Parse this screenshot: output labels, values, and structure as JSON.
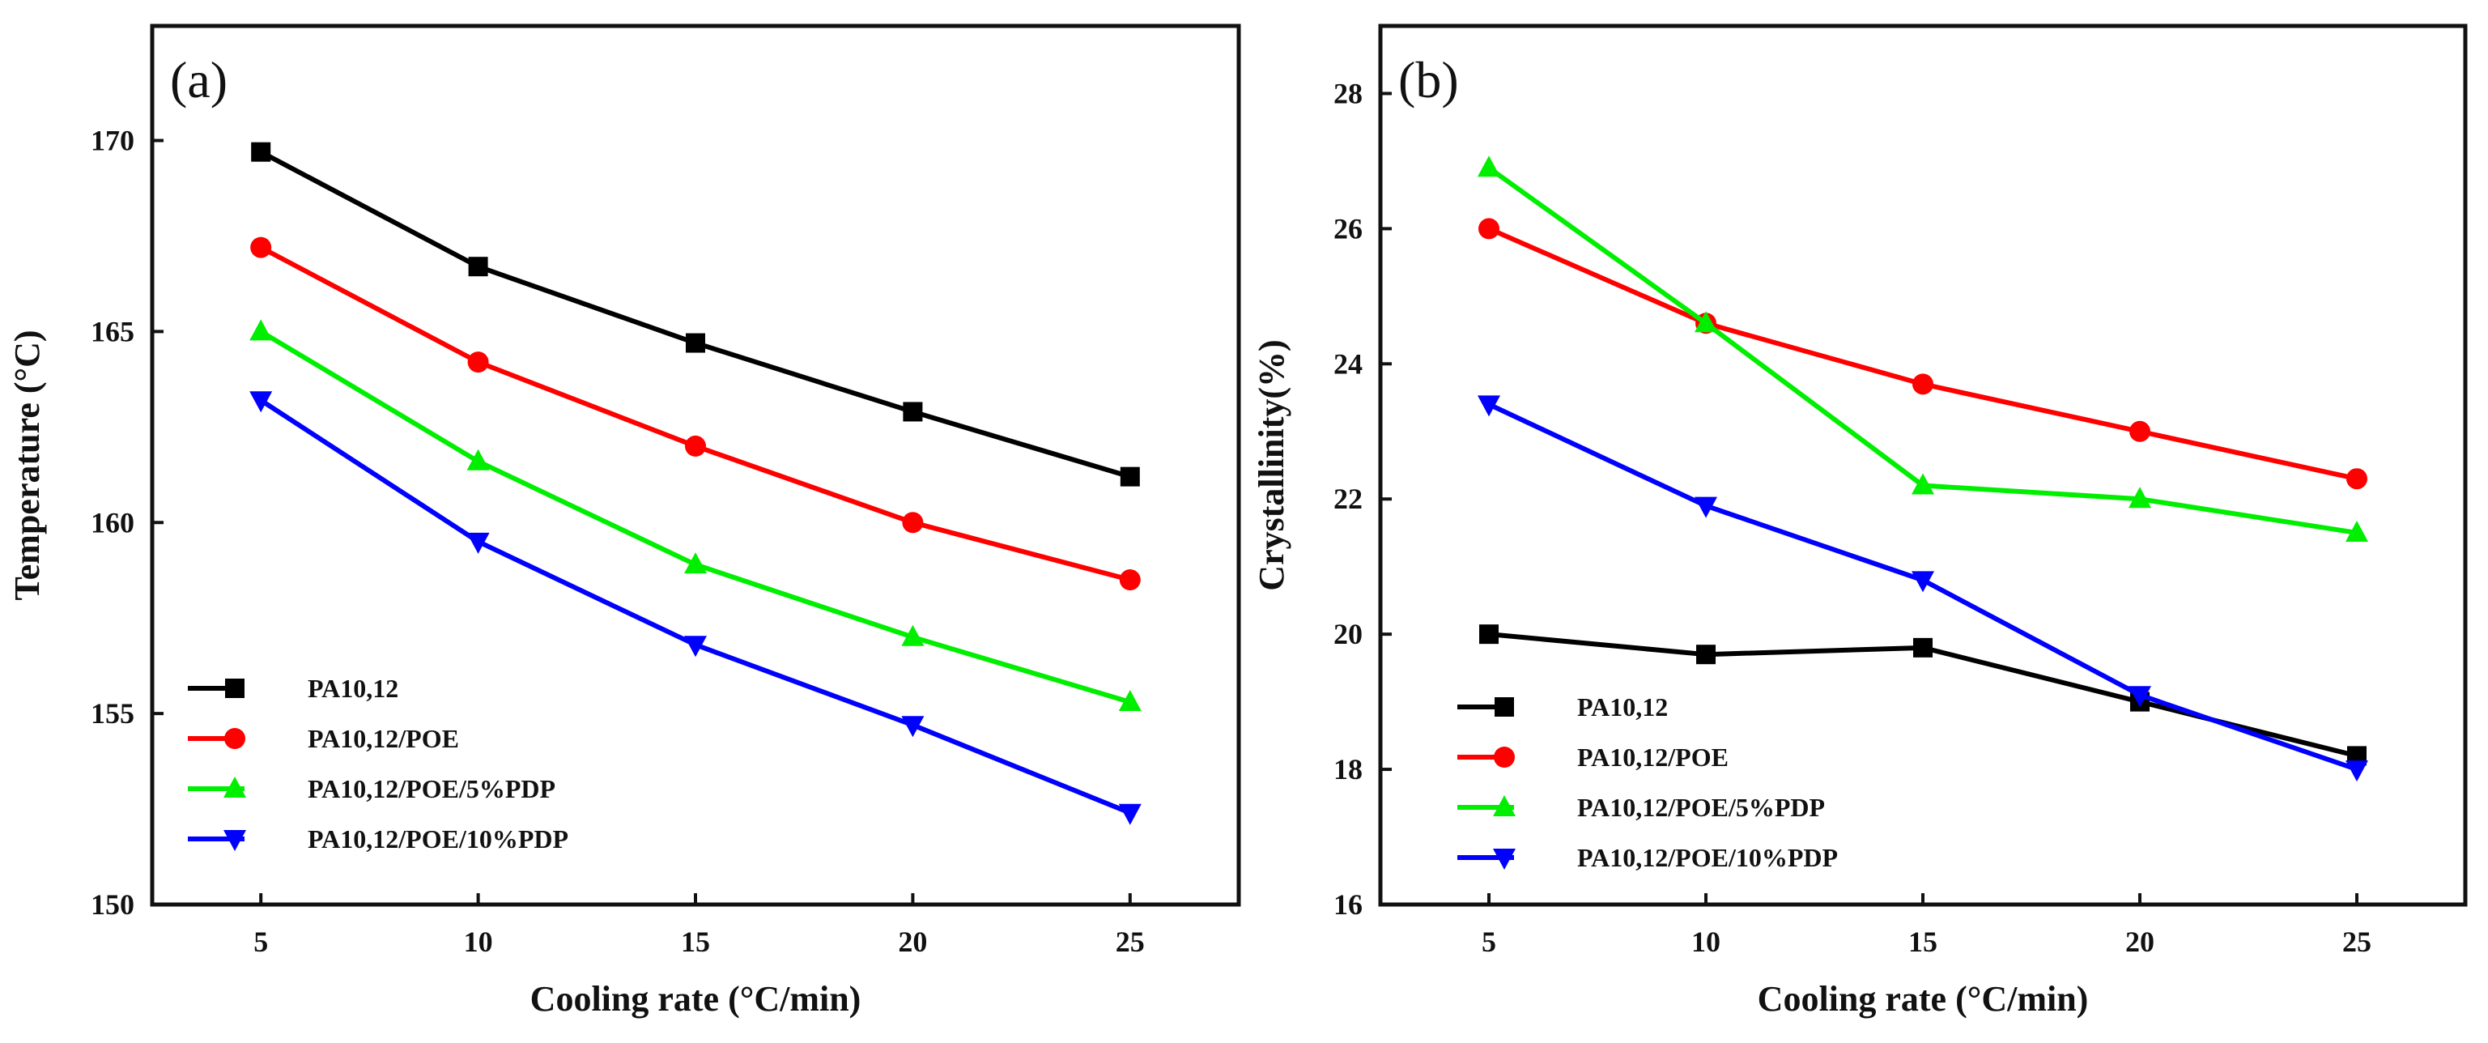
{
  "chart_data": [
    {
      "type": "line",
      "panel_label": "(a)",
      "xlabel": "Cooling rate (°C/min)",
      "ylabel": "Temperature (°C)",
      "x": [
        5,
        10,
        15,
        20,
        25
      ],
      "xlim": [
        2.5,
        27.5
      ],
      "ylim": [
        150,
        173
      ],
      "yticks": [
        150,
        155,
        160,
        165,
        170
      ],
      "grid": false,
      "legend_position": "bottom-left",
      "series": [
        {
          "name": "PA10,12",
          "color": "#000000",
          "marker": "square",
          "values": [
            169.7,
            166.7,
            164.7,
            162.9,
            161.2
          ]
        },
        {
          "name": "PA10,12/POE",
          "color": "#ff0000",
          "marker": "circle",
          "values": [
            167.2,
            164.2,
            162.0,
            160.0,
            158.5
          ]
        },
        {
          "name": "PA10,12/POE/5%PDP",
          "color": "#00ee00",
          "marker": "triangle-up",
          "values": [
            165.0,
            161.6,
            158.9,
            157.0,
            155.3
          ]
        },
        {
          "name": "PA10,12/POE/10%PDP",
          "color": "#0000ff",
          "marker": "triangle-down",
          "values": [
            163.2,
            159.5,
            156.8,
            154.7,
            152.4
          ]
        }
      ]
    },
    {
      "type": "line",
      "panel_label": "(b)",
      "xlabel": "Cooling rate (°C/min)",
      "ylabel": "Crystallinity(%)",
      "x": [
        5,
        10,
        15,
        20,
        25
      ],
      "xlim": [
        2.5,
        27.5
      ],
      "ylim": [
        16,
        29
      ],
      "yticks": [
        16,
        18,
        20,
        22,
        24,
        26,
        28
      ],
      "grid": false,
      "legend_position": "bottom-left",
      "series": [
        {
          "name": "PA10,12",
          "color": "#000000",
          "marker": "square",
          "values": [
            20.0,
            19.7,
            19.8,
            19.0,
            18.2
          ]
        },
        {
          "name": "PA10,12/POE",
          "color": "#ff0000",
          "marker": "circle",
          "values": [
            26.0,
            24.6,
            23.7,
            23.0,
            22.3
          ]
        },
        {
          "name": "PA10,12/POE/5%PDP",
          "color": "#00ee00",
          "marker": "triangle-up",
          "values": [
            26.9,
            24.6,
            22.2,
            22.0,
            21.5
          ]
        },
        {
          "name": "PA10,12/POE/10%PDP",
          "color": "#0000ff",
          "marker": "triangle-down",
          "values": [
            23.4,
            21.9,
            20.8,
            19.1,
            18.0
          ]
        }
      ]
    }
  ]
}
